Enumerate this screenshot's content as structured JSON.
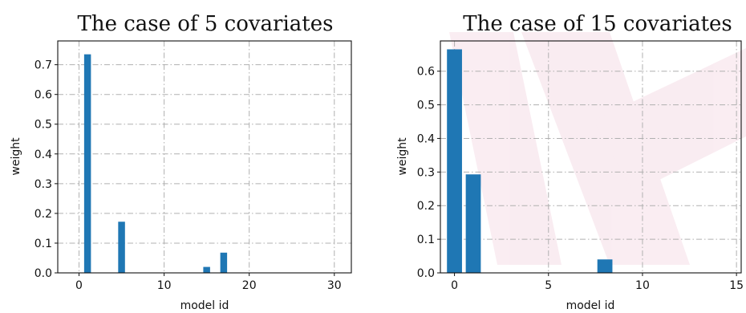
{
  "chart_data": [
    {
      "type": "bar",
      "title": "The case of 5 covariates",
      "xlabel": "model id",
      "ylabel": "weight",
      "xlim": [
        -2.5,
        32
      ],
      "ylim": [
        0,
        0.78
      ],
      "xticks": [
        0,
        10,
        20,
        30
      ],
      "yticks": [
        0.0,
        0.1,
        0.2,
        0.3,
        0.4,
        0.5,
        0.6,
        0.7
      ],
      "grid": true,
      "bar_width": 0.8,
      "color": "#1f77b4",
      "x": [
        1,
        5,
        15,
        17
      ],
      "values": [
        0.735,
        0.172,
        0.02,
        0.068
      ]
    },
    {
      "type": "bar",
      "title": "The case of 15 covariates",
      "xlabel": "model id",
      "ylabel": "weight",
      "xlim": [
        -0.75,
        15.25
      ],
      "ylim": [
        0,
        0.69
      ],
      "xticks": [
        0,
        5,
        10,
        15
      ],
      "yticks": [
        0.0,
        0.1,
        0.2,
        0.3,
        0.4,
        0.5,
        0.6
      ],
      "grid": true,
      "bar_width": 0.8,
      "color": "#1f77b4",
      "x": [
        0,
        1,
        8
      ],
      "values": [
        0.665,
        0.293,
        0.04
      ]
    }
  ]
}
